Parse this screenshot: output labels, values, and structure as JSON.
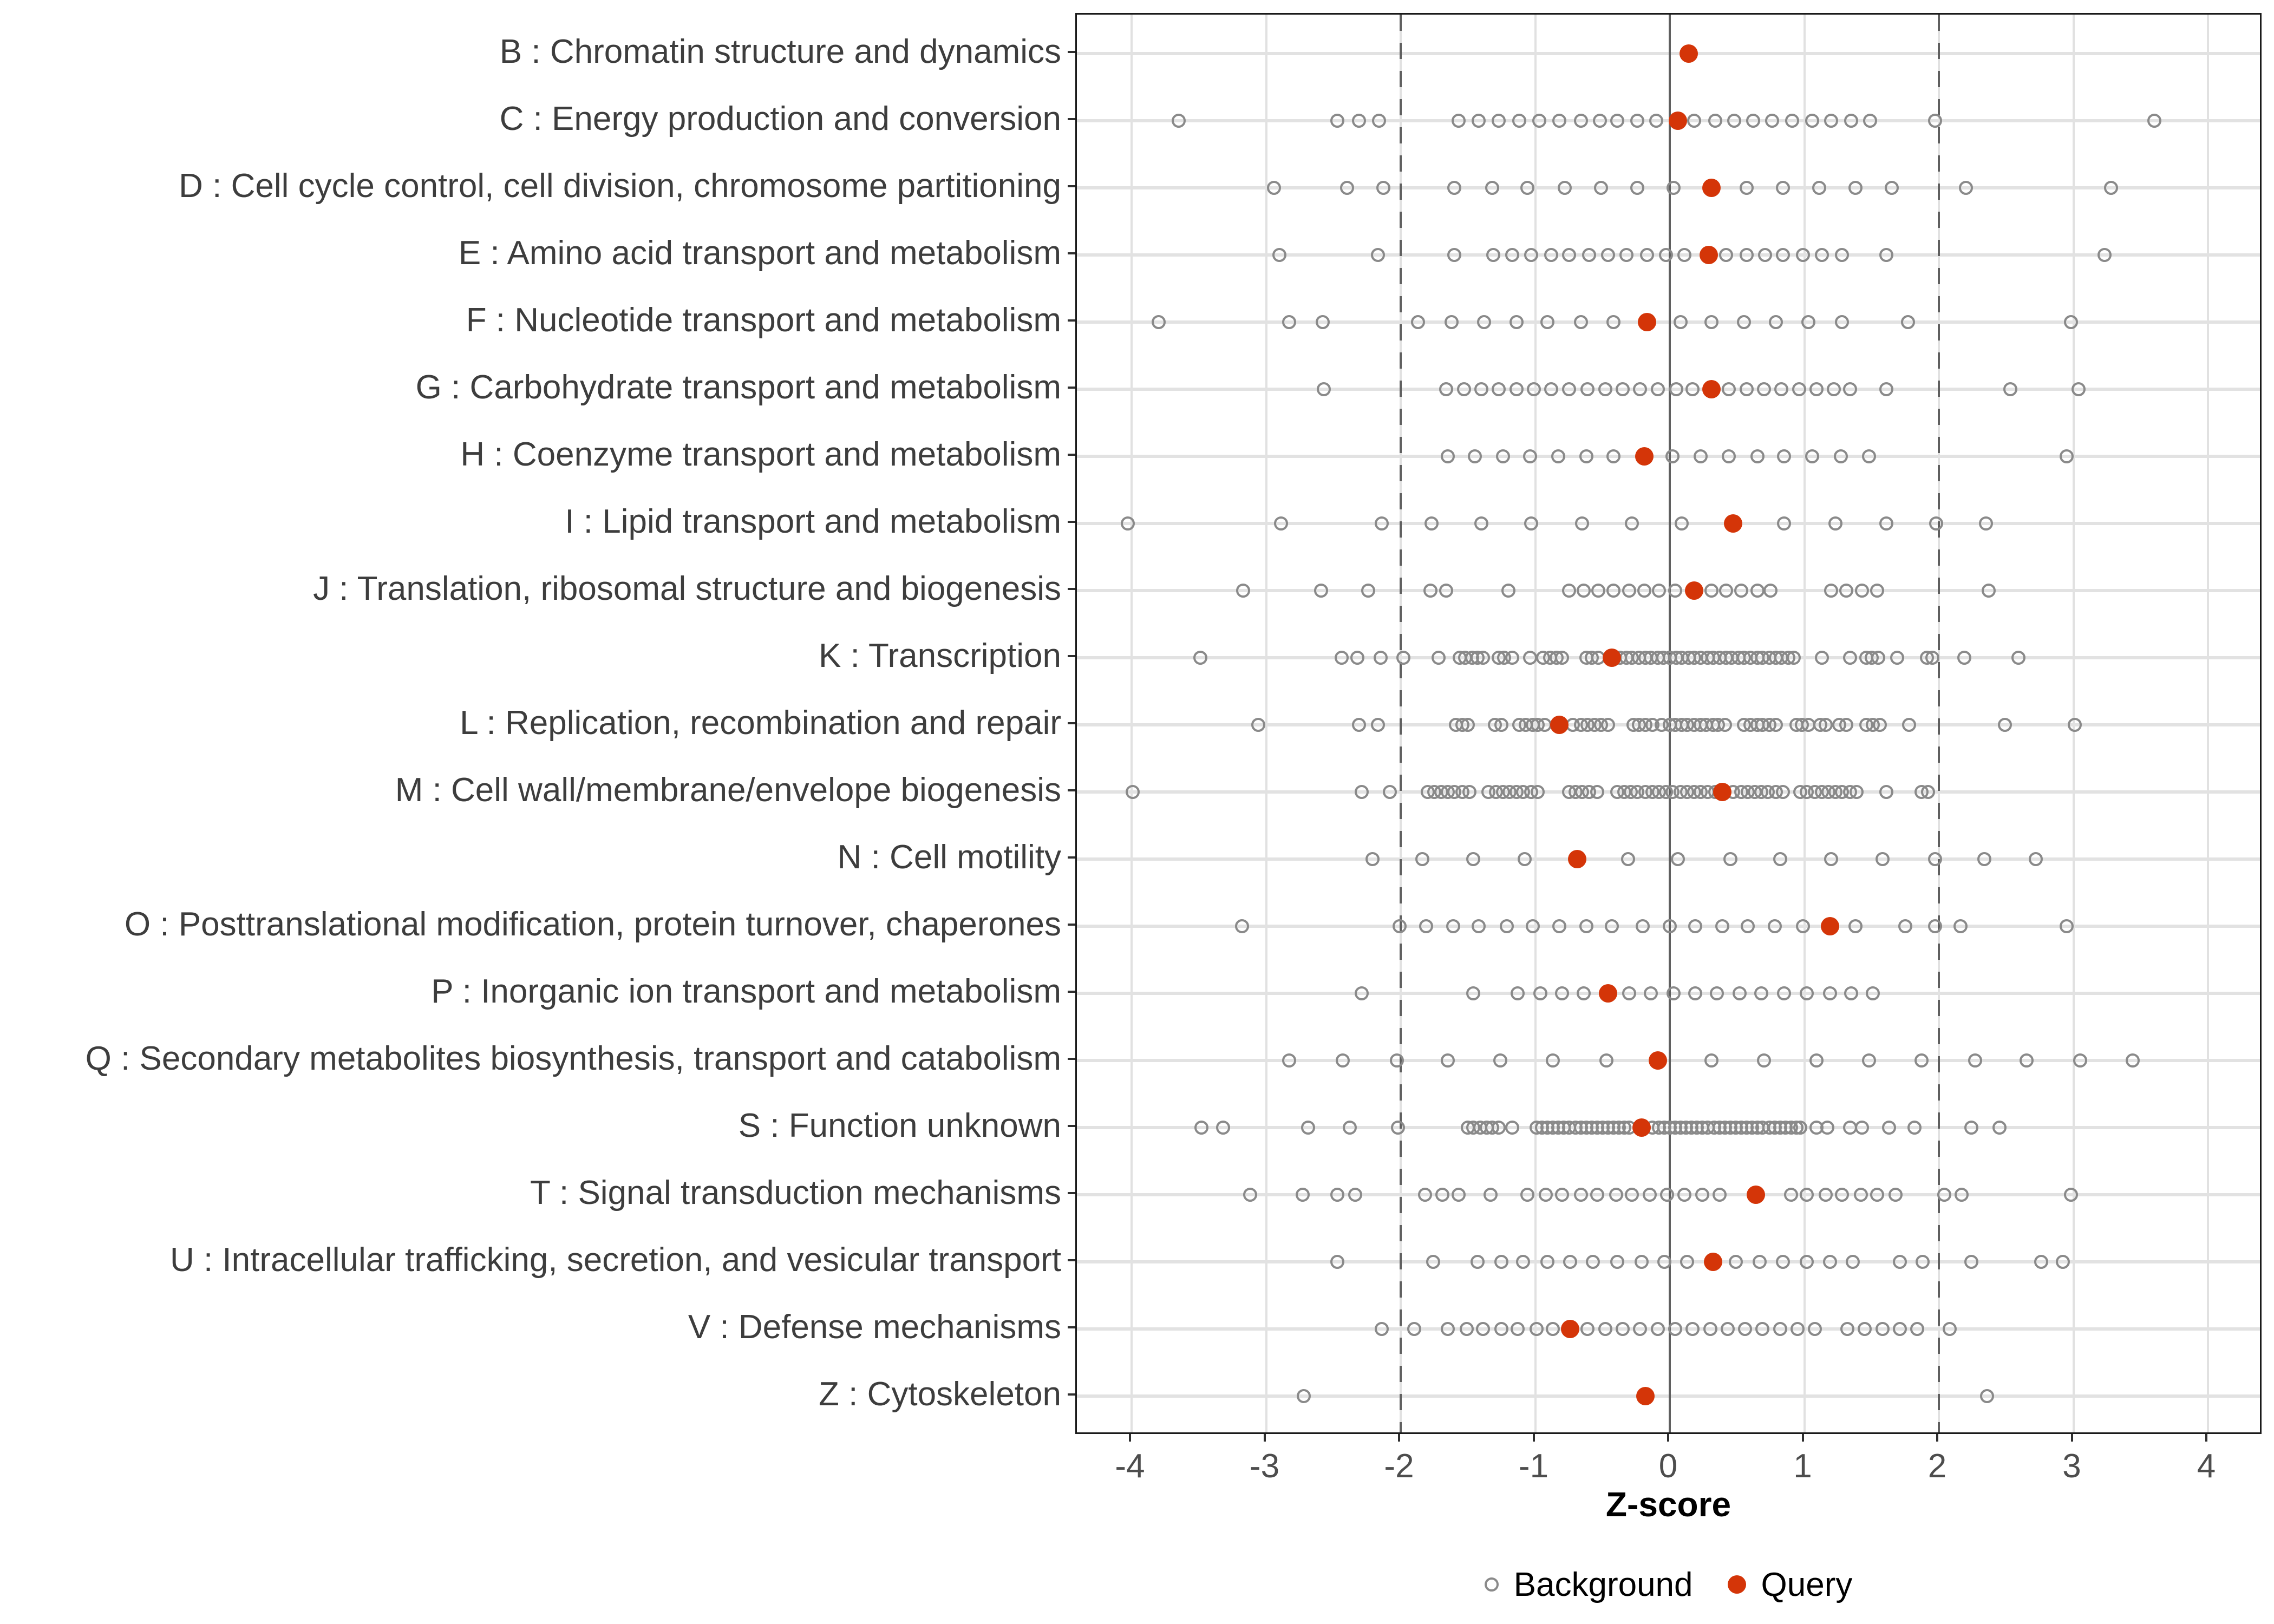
{
  "chart_data": {
    "type": "scatter",
    "title": "",
    "xlabel": "Z-score",
    "xlim": [
      -4.4,
      4.4
    ],
    "x_ticks": [
      -4,
      -3,
      -2,
      -1,
      0,
      1,
      2,
      3,
      4
    ],
    "grid": "on",
    "reference_lines": {
      "solid_x": 0,
      "dashed_x": [
        -2,
        2
      ]
    },
    "legend_position": "bottom",
    "legend": [
      {
        "label": "Background",
        "marker": "open-circle"
      },
      {
        "label": "Query",
        "marker": "filled-circle"
      }
    ],
    "categories": [
      {
        "key": "B",
        "label": "B : Chromatin structure and dynamics",
        "query": 0.14,
        "background": []
      },
      {
        "key": "C",
        "label": "C : Energy production and conversion",
        "query": 0.06,
        "background": [
          -3.65,
          -2.47,
          -2.31,
          -2.16,
          -1.57,
          -1.42,
          -1.27,
          -1.12,
          -0.97,
          -0.82,
          -0.66,
          -0.52,
          -0.39,
          -0.24,
          -0.1,
          0.18,
          0.34,
          0.48,
          0.62,
          0.76,
          0.91,
          1.06,
          1.2,
          1.35,
          1.49,
          1.97,
          3.6
        ]
      },
      {
        "key": "D",
        "label": "D : Cell cycle control, cell division, chromosome partitioning",
        "query": 0.31,
        "background": [
          -2.94,
          -2.4,
          -2.13,
          -1.6,
          -1.32,
          -1.06,
          -0.78,
          -0.51,
          -0.24,
          0.03,
          0.57,
          0.84,
          1.11,
          1.38,
          1.65,
          2.2,
          3.28
        ]
      },
      {
        "key": "E",
        "label": "E : Amino acid transport and metabolism",
        "query": 0.29,
        "background": [
          -2.9,
          -2.17,
          -1.6,
          -1.31,
          -1.17,
          -1.03,
          -0.88,
          -0.75,
          -0.6,
          -0.46,
          -0.32,
          -0.17,
          -0.03,
          0.11,
          0.42,
          0.57,
          0.71,
          0.84,
          0.99,
          1.13,
          1.28,
          1.61,
          3.23
        ]
      },
      {
        "key": "F",
        "label": "F : Nucleotide transport and metabolism",
        "query": -0.17,
        "background": [
          -3.8,
          -2.83,
          -2.58,
          -1.87,
          -1.62,
          -1.38,
          -1.14,
          -0.91,
          -0.66,
          -0.42,
          0.08,
          0.31,
          0.55,
          0.79,
          1.03,
          1.28,
          1.77,
          2.98
        ]
      },
      {
        "key": "G",
        "label": "G : Carbohydrate transport and metabolism",
        "query": 0.31,
        "background": [
          -2.57,
          -1.66,
          -1.53,
          -1.4,
          -1.27,
          -1.14,
          -1.01,
          -0.88,
          -0.75,
          -0.61,
          -0.48,
          -0.35,
          -0.22,
          -0.09,
          0.05,
          0.17,
          0.44,
          0.57,
          0.7,
          0.83,
          0.96,
          1.09,
          1.22,
          1.34,
          1.61,
          2.53,
          3.04
        ]
      },
      {
        "key": "H",
        "label": "H : Coenzyme transport and metabolism",
        "query": -0.19,
        "background": [
          -1.65,
          -1.45,
          -1.24,
          -1.04,
          -0.83,
          -0.62,
          -0.42,
          0.02,
          0.23,
          0.44,
          0.65,
          0.85,
          1.06,
          1.27,
          1.48,
          2.95
        ]
      },
      {
        "key": "I",
        "label": "I : Lipid transport and metabolism",
        "query": 0.47,
        "background": [
          -4.03,
          -2.89,
          -2.14,
          -1.77,
          -1.4,
          -1.03,
          -0.65,
          -0.28,
          0.09,
          0.85,
          1.23,
          1.61,
          1.98,
          2.35
        ]
      },
      {
        "key": "J",
        "label": "J : Translation, ribosomal structure and biogenesis",
        "query": 0.18,
        "background": [
          -3.17,
          -2.59,
          -2.24,
          -1.78,
          -1.66,
          -1.2,
          -0.75,
          -0.64,
          -0.53,
          -0.42,
          -0.3,
          -0.19,
          -0.08,
          0.04,
          0.31,
          0.42,
          0.53,
          0.65,
          0.75,
          1.2,
          1.31,
          1.43,
          1.54,
          2.37
        ]
      },
      {
        "key": "K",
        "label": "K : Transcription",
        "query": -0.43,
        "background": [
          -3.49,
          -2.44,
          -2.32,
          -2.15,
          -1.98,
          -1.72,
          -1.56,
          -1.52,
          -1.47,
          -1.43,
          -1.39,
          -1.27,
          -1.23,
          -1.17,
          -1.04,
          -0.94,
          -0.89,
          -0.84,
          -0.8,
          -0.62,
          -0.58,
          -0.53,
          -0.37,
          -0.32,
          -0.28,
          -0.23,
          -0.18,
          -0.14,
          -0.09,
          -0.05,
          0.0,
          0.05,
          0.09,
          0.14,
          0.18,
          0.23,
          0.28,
          0.32,
          0.37,
          0.42,
          0.46,
          0.51,
          0.55,
          0.6,
          0.65,
          0.69,
          0.74,
          0.79,
          0.83,
          0.88,
          0.92,
          1.13,
          1.34,
          1.46,
          1.5,
          1.55,
          1.69,
          1.91,
          1.95,
          2.19,
          2.59
        ]
      },
      {
        "key": "L",
        "label": "L : Replication, recombination and repair",
        "query": -0.82,
        "background": [
          -3.06,
          -2.31,
          -2.17,
          -1.59,
          -1.54,
          -1.5,
          -1.3,
          -1.25,
          -1.12,
          -1.07,
          -1.02,
          -0.98,
          -0.93,
          -0.72,
          -0.66,
          -0.61,
          -0.56,
          -0.51,
          -0.46,
          -0.27,
          -0.23,
          -0.18,
          -0.13,
          -0.06,
          0.0,
          0.04,
          0.09,
          0.13,
          0.18,
          0.23,
          0.27,
          0.32,
          0.36,
          0.41,
          0.55,
          0.6,
          0.65,
          0.69,
          0.74,
          0.79,
          0.94,
          0.98,
          1.03,
          1.12,
          1.16,
          1.26,
          1.31,
          1.46,
          1.51,
          1.56,
          1.78,
          2.49,
          3.01
        ]
      },
      {
        "key": "M",
        "label": "M : Cell wall/membrane/envelope biogenesis",
        "query": 0.39,
        "background": [
          -3.99,
          -2.29,
          -2.08,
          -1.8,
          -1.75,
          -1.7,
          -1.65,
          -1.6,
          -1.54,
          -1.49,
          -1.35,
          -1.29,
          -1.24,
          -1.19,
          -1.14,
          -1.09,
          -1.03,
          -0.98,
          -0.75,
          -0.7,
          -0.65,
          -0.6,
          -0.54,
          -0.39,
          -0.34,
          -0.29,
          -0.24,
          -0.18,
          -0.13,
          -0.08,
          -0.03,
          0.02,
          0.08,
          0.13,
          0.18,
          0.23,
          0.28,
          0.34,
          0.47,
          0.53,
          0.58,
          0.63,
          0.68,
          0.73,
          0.79,
          0.84,
          0.97,
          1.02,
          1.08,
          1.13,
          1.18,
          1.23,
          1.28,
          1.34,
          1.39,
          1.61,
          1.87,
          1.92
        ]
      },
      {
        "key": "N",
        "label": "N : Cell motility",
        "query": -0.69,
        "background": [
          -2.21,
          -1.84,
          -1.46,
          -1.08,
          -0.31,
          0.06,
          0.45,
          0.82,
          1.2,
          1.58,
          1.97,
          2.34,
          2.72
        ]
      },
      {
        "key": "O",
        "label": "O : Posttranslational modification, protein turnover, chaperones",
        "query": 1.19,
        "background": [
          -3.18,
          -2.01,
          -1.81,
          -1.61,
          -1.42,
          -1.21,
          -1.02,
          -0.82,
          -0.62,
          -0.43,
          -0.2,
          0.0,
          0.19,
          0.39,
          0.58,
          0.78,
          0.99,
          1.38,
          1.75,
          1.97,
          2.16,
          2.95
        ]
      },
      {
        "key": "P",
        "label": "P : Inorganic ion transport and metabolism",
        "query": -0.46,
        "background": [
          -2.29,
          -1.46,
          -1.13,
          -0.96,
          -0.8,
          -0.64,
          -0.3,
          -0.14,
          0.03,
          0.19,
          0.35,
          0.52,
          0.68,
          0.85,
          1.02,
          1.19,
          1.35,
          1.51
        ]
      },
      {
        "key": "Q",
        "label": "Q : Secondary metabolites biosynthesis, transport and catabolism",
        "query": -0.09,
        "background": [
          -2.83,
          -2.43,
          -2.03,
          -1.65,
          -1.26,
          -0.87,
          -0.47,
          0.31,
          0.7,
          1.09,
          1.48,
          1.87,
          2.27,
          2.65,
          3.05,
          3.44
        ]
      },
      {
        "key": "S",
        "label": "S : Function unknown",
        "query": -0.21,
        "background": [
          -3.48,
          -3.32,
          -2.69,
          -2.38,
          -2.02,
          -1.5,
          -1.46,
          -1.41,
          -1.36,
          -1.32,
          -1.27,
          -1.17,
          -0.99,
          -0.95,
          -0.91,
          -0.87,
          -0.83,
          -0.79,
          -0.75,
          -0.7,
          -0.66,
          -0.62,
          -0.58,
          -0.54,
          -0.5,
          -0.46,
          -0.42,
          -0.38,
          -0.34,
          -0.3,
          -0.13,
          -0.08,
          -0.04,
          0.0,
          0.04,
          0.08,
          0.12,
          0.16,
          0.2,
          0.24,
          0.28,
          0.33,
          0.37,
          0.41,
          0.45,
          0.49,
          0.53,
          0.57,
          0.61,
          0.65,
          0.69,
          0.74,
          0.78,
          0.82,
          0.86,
          0.9,
          0.94,
          0.97,
          1.09,
          1.17,
          1.34,
          1.43,
          1.63,
          1.82,
          2.24,
          2.45
        ]
      },
      {
        "key": "T",
        "label": "T : Signal transduction mechanisms",
        "query": 0.64,
        "background": [
          -3.12,
          -2.73,
          -2.47,
          -2.34,
          -1.82,
          -1.69,
          -1.57,
          -1.33,
          -1.06,
          -0.92,
          -0.8,
          -0.66,
          -0.54,
          -0.4,
          -0.28,
          -0.15,
          -0.02,
          0.11,
          0.24,
          0.37,
          0.9,
          1.02,
          1.16,
          1.28,
          1.42,
          1.54,
          1.68,
          2.04,
          2.17,
          2.98
        ]
      },
      {
        "key": "U",
        "label": "U : Intracellular trafficking, secretion, and vesicular transport",
        "query": 0.32,
        "background": [
          -2.47,
          -1.76,
          -1.43,
          -1.25,
          -1.09,
          -0.91,
          -0.74,
          -0.57,
          -0.39,
          -0.21,
          -0.04,
          0.13,
          0.49,
          0.67,
          0.84,
          1.02,
          1.19,
          1.36,
          1.71,
          1.88,
          2.24,
          2.76,
          2.92
        ]
      },
      {
        "key": "V",
        "label": "V : Defense mechanisms",
        "query": -0.74,
        "background": [
          -2.14,
          -1.9,
          -1.65,
          -1.51,
          -1.39,
          -1.25,
          -1.13,
          -0.99,
          -0.87,
          -0.61,
          -0.48,
          -0.35,
          -0.22,
          -0.09,
          0.04,
          0.17,
          0.3,
          0.43,
          0.56,
          0.69,
          0.82,
          0.95,
          1.08,
          1.32,
          1.45,
          1.58,
          1.71,
          1.84,
          2.08
        ]
      },
      {
        "key": "Z",
        "label": "Z : Cytoskeleton",
        "query": -0.18,
        "background": [
          -2.72,
          2.36
        ]
      }
    ]
  },
  "colors": {
    "query": "#d43508",
    "background_stroke": "#8a8a8a",
    "row_band": "#e2e2e2",
    "gridline": "#e1e1e1",
    "reference_line": "#5f5f5f",
    "panel_border": "#1a1a1a",
    "axis_text": "#4d4d4d",
    "axis_tick": "#2f2f2f",
    "category_text": "#3d3d3d",
    "xlabel_text": "#000000",
    "legend_text": "#000000"
  }
}
